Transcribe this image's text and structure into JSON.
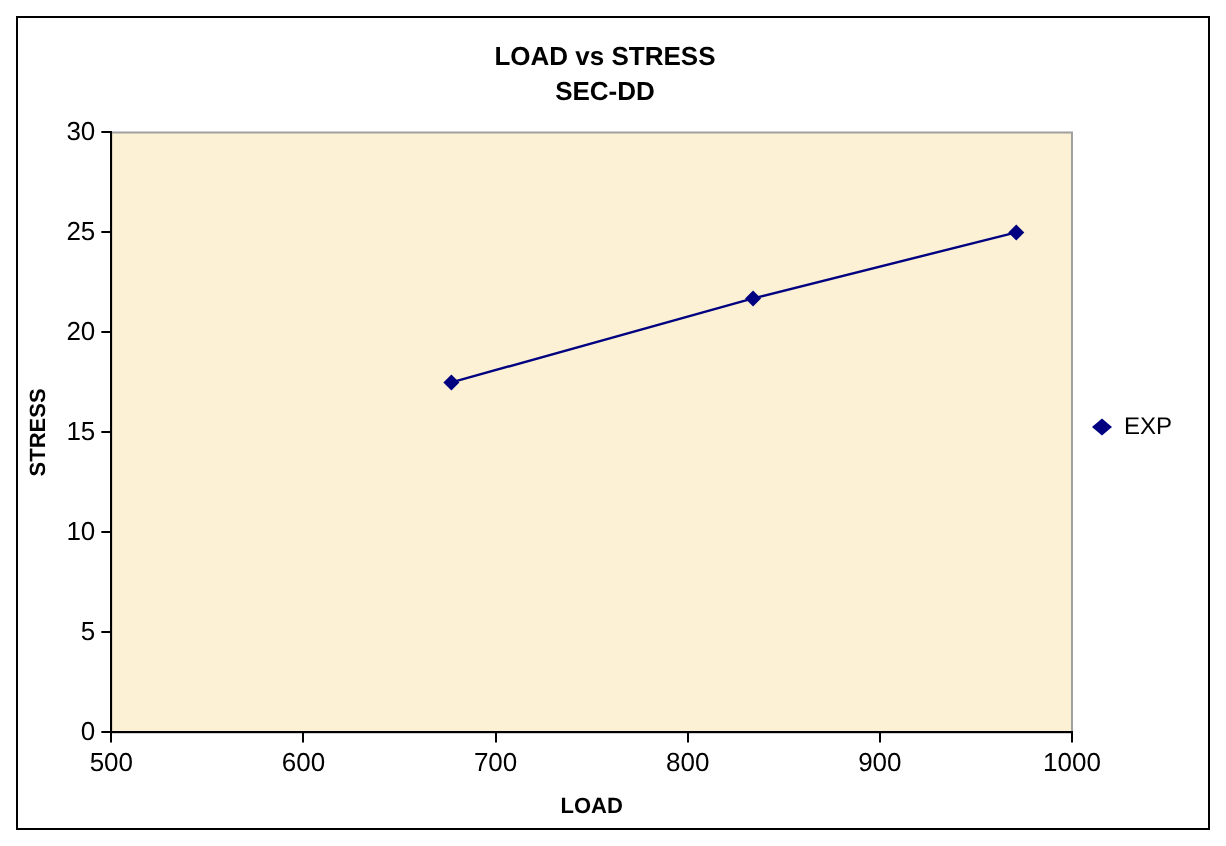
{
  "chart_data": {
    "type": "line",
    "title": "LOAD vs STRESS",
    "subtitle": "SEC-DD",
    "xlabel": "LOAD",
    "ylabel": "STRESS",
    "x": [
      677,
      834,
      971
    ],
    "series": [
      {
        "name": "EXP",
        "color": "#000080",
        "values": [
          17.5,
          21.7,
          25
        ]
      }
    ],
    "xlim": [
      500,
      1000
    ],
    "xticks": [
      500,
      600,
      700,
      800,
      900,
      1000
    ],
    "ylim": [
      0,
      30
    ],
    "yticks": [
      0,
      5,
      10,
      15,
      20,
      25,
      30
    ],
    "grid": false,
    "legend": "right",
    "marker": "diamond",
    "line_style": "solid"
  }
}
